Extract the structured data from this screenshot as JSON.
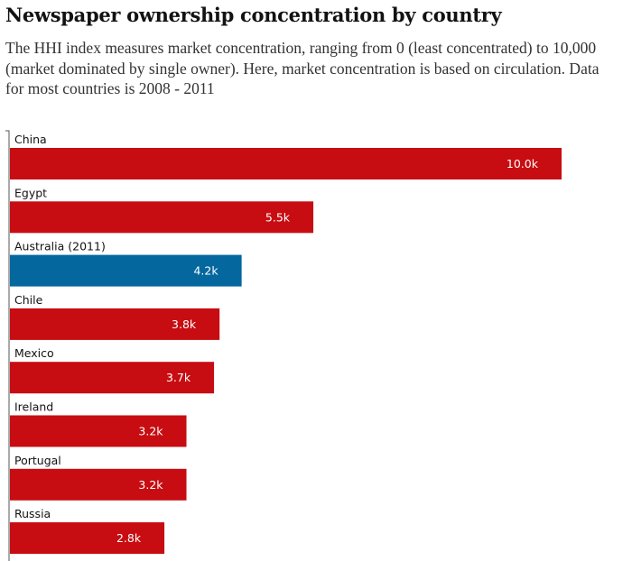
{
  "chart_data": {
    "type": "bar",
    "orientation": "horizontal",
    "title": "Newspaper ownership concentration by country",
    "subtitle": "The HHI index measures market concentration, ranging from 0 (least concentrated) to 10,000 (market dominated by single owner). Here, market concentration is based on circulation. Data for most countries is 2008 - 2011",
    "xlabel": "",
    "ylabel": "",
    "xlim": [
      0,
      10000
    ],
    "grid": false,
    "legend": "none",
    "categories": [
      "China",
      "Egypt",
      "Australia (2011)",
      "Chile",
      "Mexico",
      "Ireland",
      "Portugal",
      "Russia"
    ],
    "values": [
      10000,
      5500,
      4200,
      3800,
      3700,
      3200,
      3200,
      2800
    ],
    "data_labels": [
      "10.0k",
      "5.5k",
      "4.2k",
      "3.8k",
      "3.7k",
      "3.2k",
      "3.2k",
      "2.8k"
    ],
    "highlight": [
      false,
      false,
      true,
      false,
      false,
      false,
      false,
      false
    ],
    "colors": {
      "default": "#c70d12",
      "highlight": "#04679e",
      "axis": "#555555"
    }
  }
}
